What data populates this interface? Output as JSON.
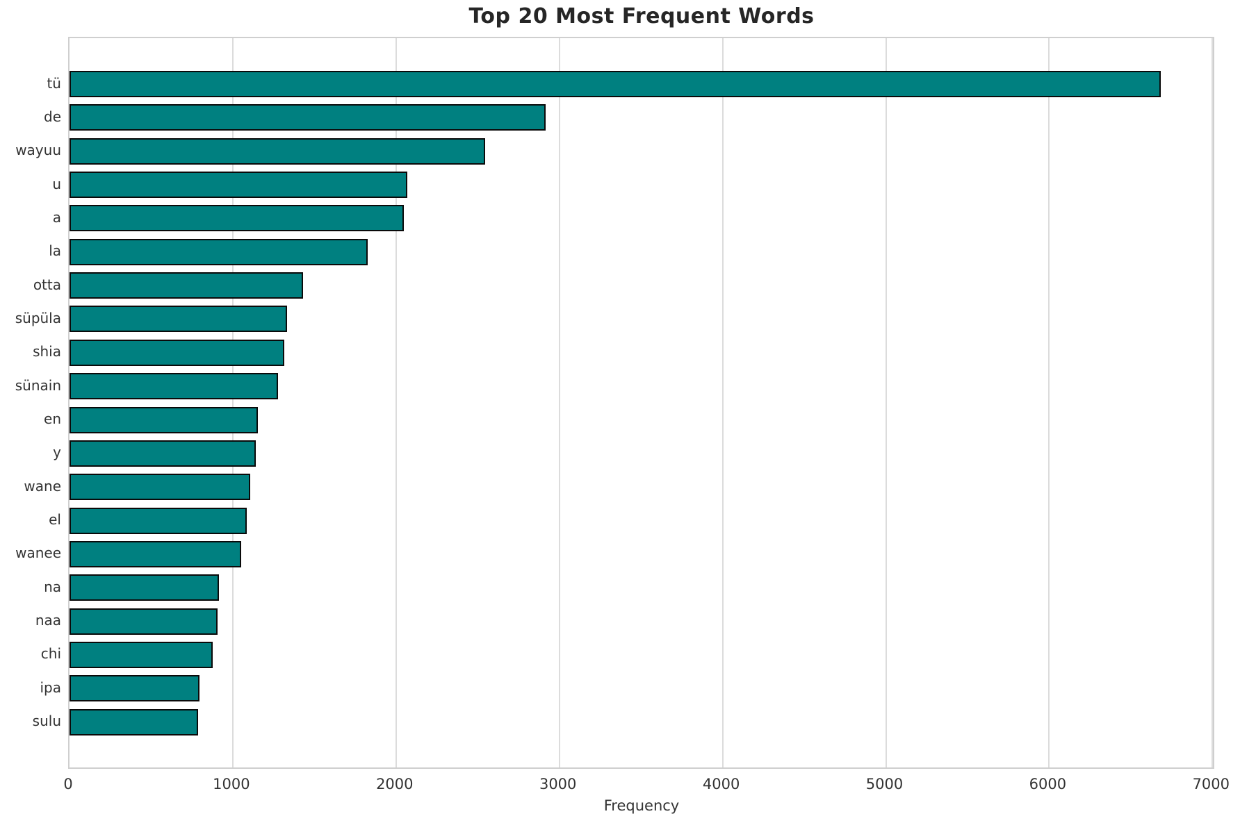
{
  "chart_data": {
    "type": "bar",
    "orientation": "horizontal",
    "title": "Top 20 Most Frequent Words",
    "xlabel": "Frequency",
    "ylabel": "",
    "categories": [
      "tü",
      "de",
      "wayuu",
      "u",
      "a",
      "la",
      "otta",
      "süpüla",
      "shia",
      "sünain",
      "en",
      "y",
      "wane",
      "el",
      "wanee",
      "na",
      "naa",
      "chi",
      "ipa",
      "sulu"
    ],
    "values": [
      6690,
      2920,
      2550,
      2075,
      2050,
      1830,
      1435,
      1335,
      1320,
      1280,
      1160,
      1145,
      1110,
      1090,
      1055,
      920,
      910,
      880,
      800,
      790
    ],
    "xlim": [
      0,
      7000
    ],
    "x_ticks": [
      0,
      1000,
      2000,
      3000,
      4000,
      5000,
      6000,
      7000
    ],
    "grid": true,
    "legend": "none",
    "bar_color": "#008080",
    "bar_edge_color": "#0a0a0a"
  }
}
